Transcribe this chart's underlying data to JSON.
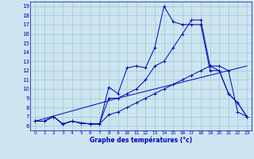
{
  "xlabel": "Graphe des températures (°c)",
  "ylim": [
    5.5,
    19.5
  ],
  "xlim": [
    -0.5,
    23.5
  ],
  "yticks": [
    6,
    7,
    8,
    9,
    10,
    11,
    12,
    13,
    14,
    15,
    16,
    17,
    18,
    19
  ],
  "xticks": [
    0,
    1,
    2,
    3,
    4,
    5,
    6,
    7,
    8,
    9,
    10,
    11,
    12,
    13,
    14,
    15,
    16,
    17,
    18,
    19,
    20,
    21,
    22,
    23
  ],
  "background_color": "#cce5f0",
  "line_color": "#0000bb",
  "grid_color": "#99bbcc",
  "line1_x": [
    0,
    1,
    2,
    3,
    4,
    5,
    6,
    7,
    8,
    9,
    10,
    11,
    12,
    13,
    14,
    15,
    16,
    17,
    18,
    19,
    20,
    21,
    22,
    23
  ],
  "line1_y": [
    6.5,
    6.5,
    7.0,
    6.2,
    6.5,
    6.3,
    6.2,
    6.2,
    10.2,
    9.5,
    12.3,
    12.5,
    12.3,
    14.5,
    19.0,
    17.3,
    17.0,
    17.0,
    17.0,
    12.0,
    12.0,
    9.5,
    8.5,
    7.0
  ],
  "line2_x": [
    0,
    1,
    2,
    3,
    4,
    5,
    6,
    7,
    8,
    9,
    10,
    11,
    12,
    13,
    14,
    15,
    16,
    17,
    18,
    19,
    20,
    21,
    22,
    23
  ],
  "line2_y": [
    6.5,
    6.5,
    7.0,
    6.2,
    6.5,
    6.3,
    6.2,
    6.2,
    9.0,
    9.0,
    9.5,
    10.0,
    11.0,
    12.5,
    13.0,
    14.5,
    16.0,
    17.5,
    17.5,
    12.5,
    12.0,
    9.5,
    8.5,
    7.0
  ],
  "line3_x": [
    0,
    9,
    23
  ],
  "line3_y": [
    6.5,
    9.0,
    12.5
  ],
  "line4_x": [
    0,
    1,
    2,
    3,
    4,
    5,
    6,
    7,
    8,
    9,
    10,
    11,
    12,
    13,
    14,
    15,
    16,
    17,
    18,
    19,
    20,
    21,
    22,
    23
  ],
  "line4_y": [
    6.5,
    6.5,
    7.0,
    6.2,
    6.5,
    6.3,
    6.2,
    6.2,
    7.2,
    7.5,
    8.0,
    8.5,
    9.0,
    9.5,
    10.0,
    10.5,
    11.0,
    11.5,
    12.0,
    12.5,
    12.5,
    12.0,
    7.5,
    7.0
  ]
}
